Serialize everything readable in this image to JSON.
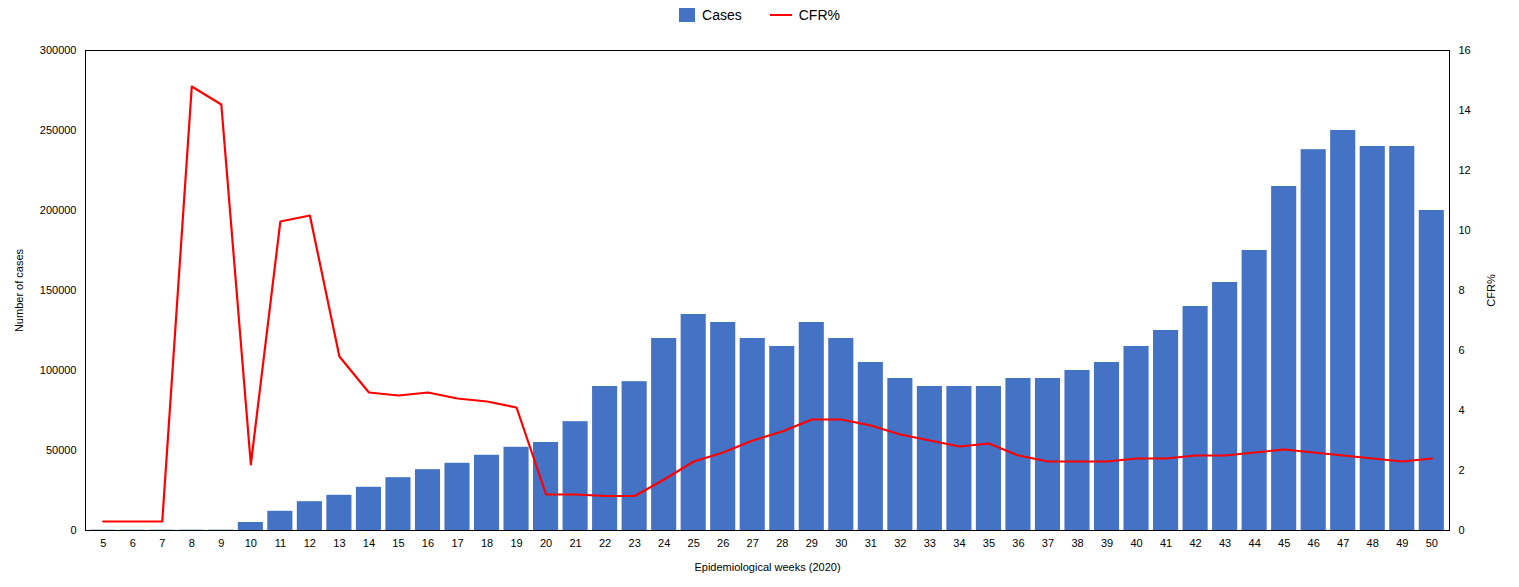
{
  "chart_data": {
    "type": "bar",
    "xlabel": "Epidemiological weeks (2020)",
    "ylabel": "Number of cases",
    "y2label": "CFR%",
    "x": [
      5,
      6,
      7,
      8,
      9,
      10,
      11,
      12,
      13,
      14,
      15,
      16,
      17,
      18,
      19,
      20,
      21,
      22,
      23,
      24,
      25,
      26,
      27,
      28,
      29,
      30,
      31,
      32,
      33,
      34,
      35,
      36,
      37,
      38,
      39,
      40,
      41,
      42,
      43,
      44,
      45,
      46,
      47,
      48,
      49,
      50
    ],
    "series": [
      {
        "name": "Cases",
        "type": "bar",
        "color": "#4472C4",
        "values": [
          200,
          200,
          200,
          200,
          200,
          5000,
          12000,
          18000,
          22000,
          27000,
          33000,
          38000,
          42000,
          47000,
          52000,
          55000,
          68000,
          90000,
          93000,
          120000,
          135000,
          130000,
          120000,
          115000,
          130000,
          120000,
          105000,
          95000,
          90000,
          90000,
          90000,
          95000,
          95000,
          100000,
          105000,
          115000,
          125000,
          140000,
          155000,
          175000,
          215000,
          238000,
          250000,
          240000,
          240000,
          200000
        ]
      },
      {
        "name": "CFR%",
        "type": "line",
        "color": "#FF0000",
        "axis": "y2",
        "values": [
          0.3,
          0.3,
          0.3,
          14.8,
          14.2,
          2.2,
          10.3,
          10.5,
          5.8,
          4.6,
          4.5,
          4.6,
          4.4,
          4.3,
          4.1,
          1.2,
          1.2,
          1.15,
          1.15,
          1.7,
          2.3,
          2.6,
          3.0,
          3.3,
          3.7,
          3.7,
          3.5,
          3.2,
          3.0,
          2.8,
          2.9,
          2.5,
          2.3,
          2.3,
          2.3,
          2.4,
          2.4,
          2.5,
          2.5,
          2.6,
          2.7,
          2.6,
          2.5,
          2.4,
          2.3,
          2.4
        ]
      }
    ],
    "xlim": [
      4.4,
      50.6
    ],
    "xticks": [
      5,
      6,
      7,
      8,
      9,
      10,
      11,
      12,
      13,
      14,
      15,
      16,
      17,
      18,
      19,
      20,
      21,
      22,
      23,
      24,
      25,
      26,
      27,
      28,
      29,
      30,
      31,
      32,
      33,
      34,
      35,
      36,
      37,
      38,
      39,
      40,
      41,
      42,
      43,
      44,
      45,
      46,
      47,
      48,
      49,
      50
    ],
    "ylim": [
      0,
      300000
    ],
    "yticks": [
      0,
      50000,
      100000,
      150000,
      200000,
      250000,
      300000
    ],
    "y2lim": [
      0,
      16
    ],
    "y2ticks": [
      0,
      2,
      4,
      6,
      8,
      10,
      12,
      14,
      16
    ],
    "legend": "top",
    "grid": false
  }
}
